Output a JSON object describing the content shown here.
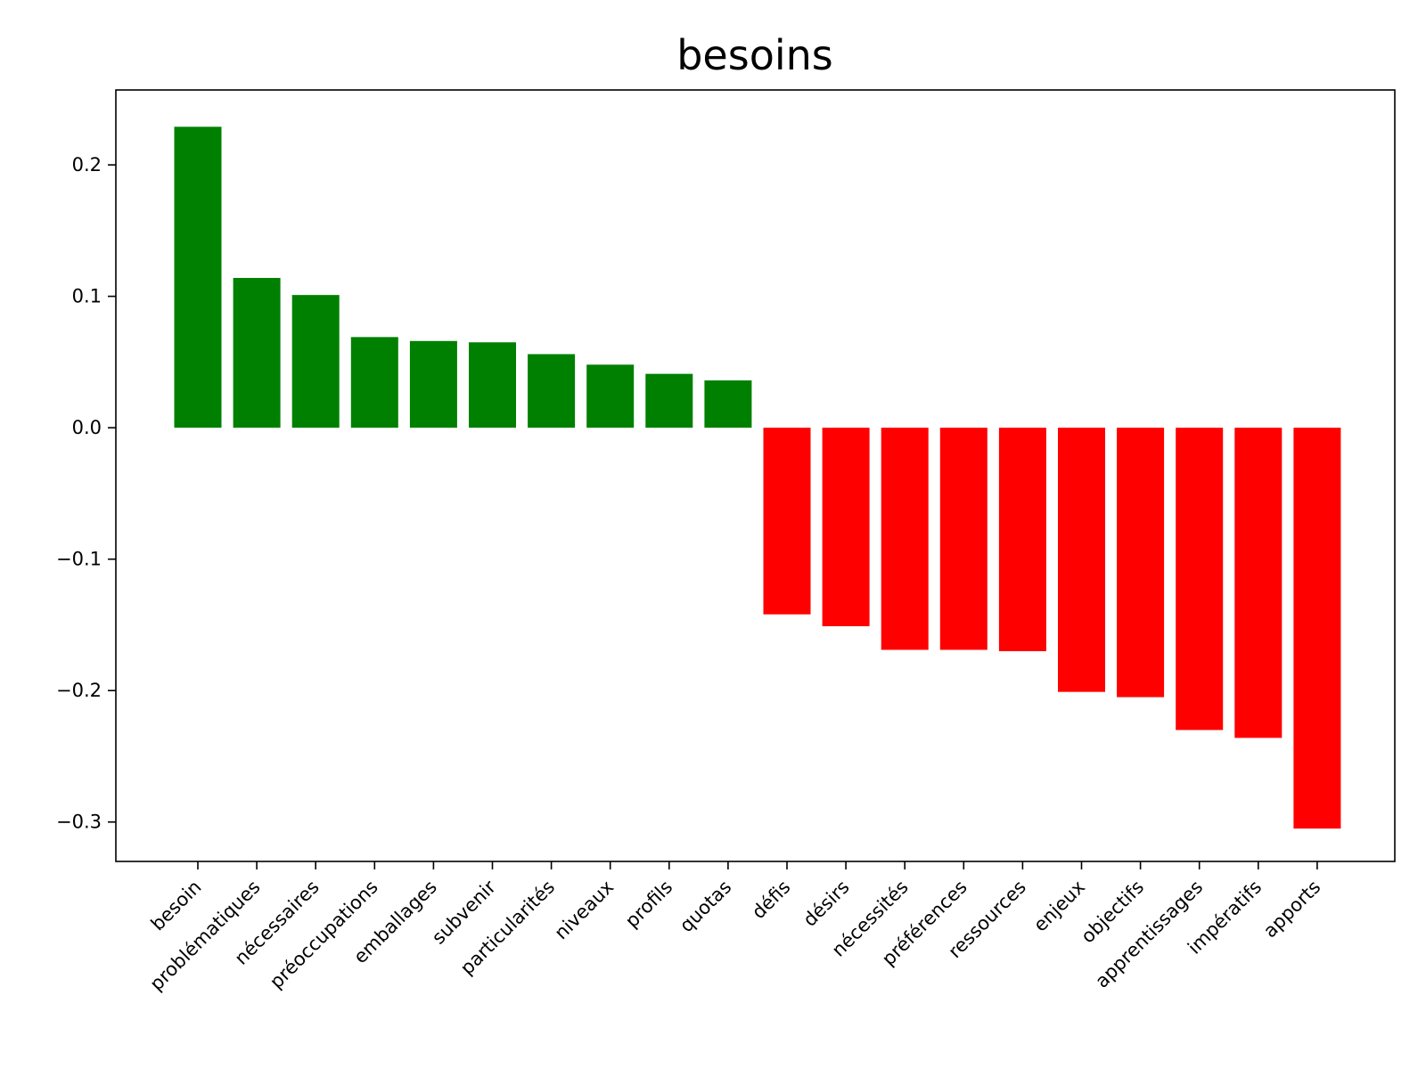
{
  "chart_data": {
    "type": "bar",
    "title": "besoins",
    "xlabel": "",
    "ylabel": "",
    "categories": [
      "besoin",
      "problématiques",
      "nécessaires",
      "préoccupations",
      "emballages",
      "subvenir",
      "particularités",
      "niveaux",
      "profils",
      "quotas",
      "défis",
      "désirs",
      "nécessités",
      "préférences",
      "ressources",
      "enjeux",
      "objectifs",
      "apprentissages",
      "impératifs",
      "apports"
    ],
    "values": [
      0.229,
      0.114,
      0.101,
      0.069,
      0.066,
      0.065,
      0.056,
      0.048,
      0.041,
      0.036,
      -0.142,
      -0.151,
      -0.169,
      -0.169,
      -0.17,
      -0.201,
      -0.205,
      -0.23,
      -0.236,
      -0.305
    ],
    "ylim": [
      -0.33,
      0.257
    ],
    "yticks": [
      0.2,
      0.1,
      0.0,
      -0.1,
      -0.2,
      -0.3
    ],
    "ytick_labels": [
      "0.2",
      "0.1",
      "0.0",
      "−0.1",
      "−0.2",
      "−0.3"
    ],
    "positive_color": "#008000",
    "negative_color": "#ff0000",
    "grid": false,
    "legend": "none"
  }
}
